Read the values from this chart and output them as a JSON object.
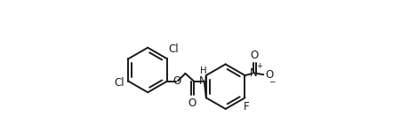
{
  "background": "#ffffff",
  "line_color": "#1a1a1a",
  "line_width": 1.4,
  "font_size": 8.5,
  "figsize": [
    4.42,
    1.58
  ],
  "dpi": 100,
  "xlim": [
    0.0,
    1.0
  ],
  "ylim": [
    0.05,
    0.95
  ]
}
